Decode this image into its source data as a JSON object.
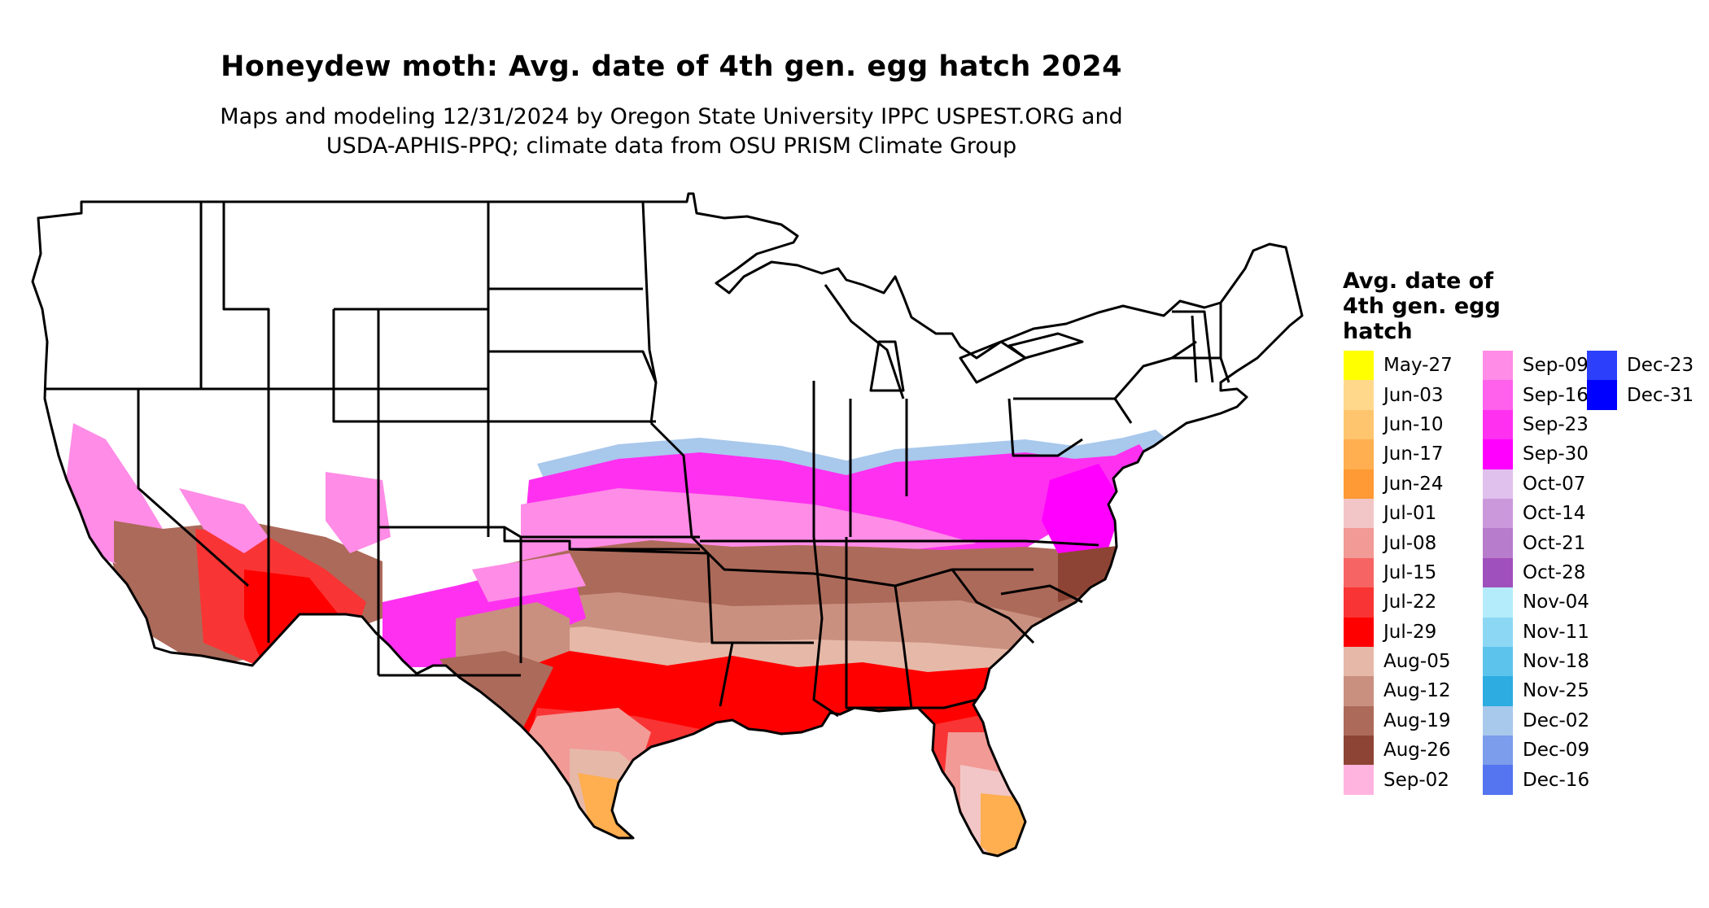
{
  "map": {
    "title": "Honeydew moth: Avg. date of 4th gen. egg hatch 2024",
    "subtitle_lines": [
      "Maps and modeling 12/31/2024 by Oregon State University IPPC USPEST.ORG and",
      "USDA-APHIS-PPQ; climate data from OSU PRISM Climate Group"
    ],
    "legend": {
      "title_lines": [
        "Avg. date of",
        "4th gen. egg",
        "hatch"
      ],
      "columns": [
        [
          {
            "label": "May-27",
            "color": "#FFFF00"
          },
          {
            "label": "Jun-03",
            "color": "#FFD88C"
          },
          {
            "label": "Jun-10",
            "color": "#FFC56E"
          },
          {
            "label": "Jun-17",
            "color": "#FFAE50"
          },
          {
            "label": "Jun-24",
            "color": "#FF9A34"
          },
          {
            "label": "Jul-01",
            "color": "#F2C6C6"
          },
          {
            "label": "Jul-08",
            "color": "#F29A96"
          },
          {
            "label": "Jul-15",
            "color": "#F66464"
          },
          {
            "label": "Jul-22",
            "color": "#F93434"
          },
          {
            "label": "Jul-29",
            "color": "#FF0000"
          },
          {
            "label": "Aug-05",
            "color": "#E6B8A8"
          },
          {
            "label": "Aug-12",
            "color": "#C99080"
          },
          {
            "label": "Aug-19",
            "color": "#AC6A5A"
          },
          {
            "label": "Aug-26",
            "color": "#8E4434"
          },
          {
            "label": "Sep-02",
            "color": "#FFB4E0"
          }
        ],
        [
          {
            "label": "Sep-09",
            "color": "#FF8CE6"
          },
          {
            "label": "Sep-16",
            "color": "#FF60EC"
          },
          {
            "label": "Sep-23",
            "color": "#FF30F0"
          },
          {
            "label": "Sep-30",
            "color": "#FF00FF"
          },
          {
            "label": "Oct-07",
            "color": "#E0C0EC"
          },
          {
            "label": "Oct-14",
            "color": "#CC98DC"
          },
          {
            "label": "Oct-21",
            "color": "#B87CCC"
          },
          {
            "label": "Oct-28",
            "color": "#A050BC"
          },
          {
            "label": "Nov-04",
            "color": "#B4ECFC"
          },
          {
            "label": "Nov-11",
            "color": "#8CD8F4"
          },
          {
            "label": "Nov-18",
            "color": "#5CC4EC"
          },
          {
            "label": "Nov-25",
            "color": "#2CACE0"
          },
          {
            "label": "Dec-02",
            "color": "#A8C8EC"
          },
          {
            "label": "Dec-09",
            "color": "#7C9CEC"
          },
          {
            "label": "Dec-16",
            "color": "#5474F0"
          }
        ],
        [
          {
            "label": "Dec-23",
            "color": "#2C40FC"
          },
          {
            "label": "Dec-31",
            "color": "#0000FF"
          }
        ]
      ]
    }
  }
}
